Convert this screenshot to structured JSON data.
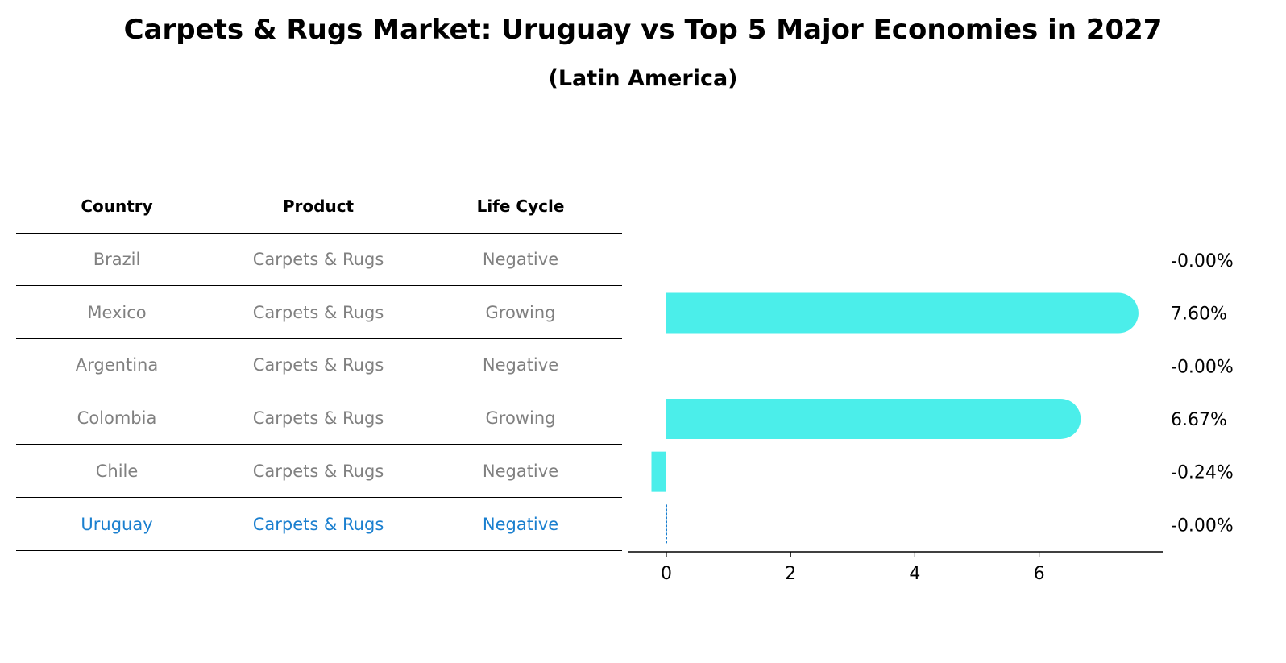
{
  "title": "Carpets & Rugs Market: Uruguay vs Top 5 Major Economies in 2027",
  "subtitle": "(Latin America)",
  "table": {
    "headers": [
      "Country",
      "Product",
      "Life Cycle"
    ],
    "rows": [
      [
        "Brazil",
        "Carpets & Rugs",
        "Negative"
      ],
      [
        "Mexico",
        "Carpets & Rugs",
        "Growing"
      ],
      [
        "Argentina",
        "Carpets & Rugs",
        "Negative"
      ],
      [
        "Colombia",
        "Carpets & Rugs",
        "Growing"
      ],
      [
        "Chile",
        "Carpets & Rugs",
        "Negative"
      ],
      [
        "Uruguay",
        "Carpets & Rugs",
        "Negative"
      ]
    ],
    "highlight_row": "Uruguay"
  },
  "chart_data": {
    "type": "bar",
    "orientation": "horizontal",
    "categories": [
      "Brazil",
      "Mexico",
      "Argentina",
      "Colombia",
      "Chile",
      "Uruguay"
    ],
    "values": [
      -0.0,
      7.6,
      -0.0,
      6.67,
      -0.24,
      -0.0
    ],
    "value_labels": [
      "-0.00%",
      "7.60%",
      "-0.00%",
      "6.67%",
      "-0.24%",
      "-0.00%"
    ],
    "xticks": [
      "0",
      "2",
      "4",
      "6"
    ],
    "xlim": [
      -0.65,
      8.0
    ],
    "bar_color": "#4beeea",
    "highlight_color": "#1a7fcf"
  }
}
